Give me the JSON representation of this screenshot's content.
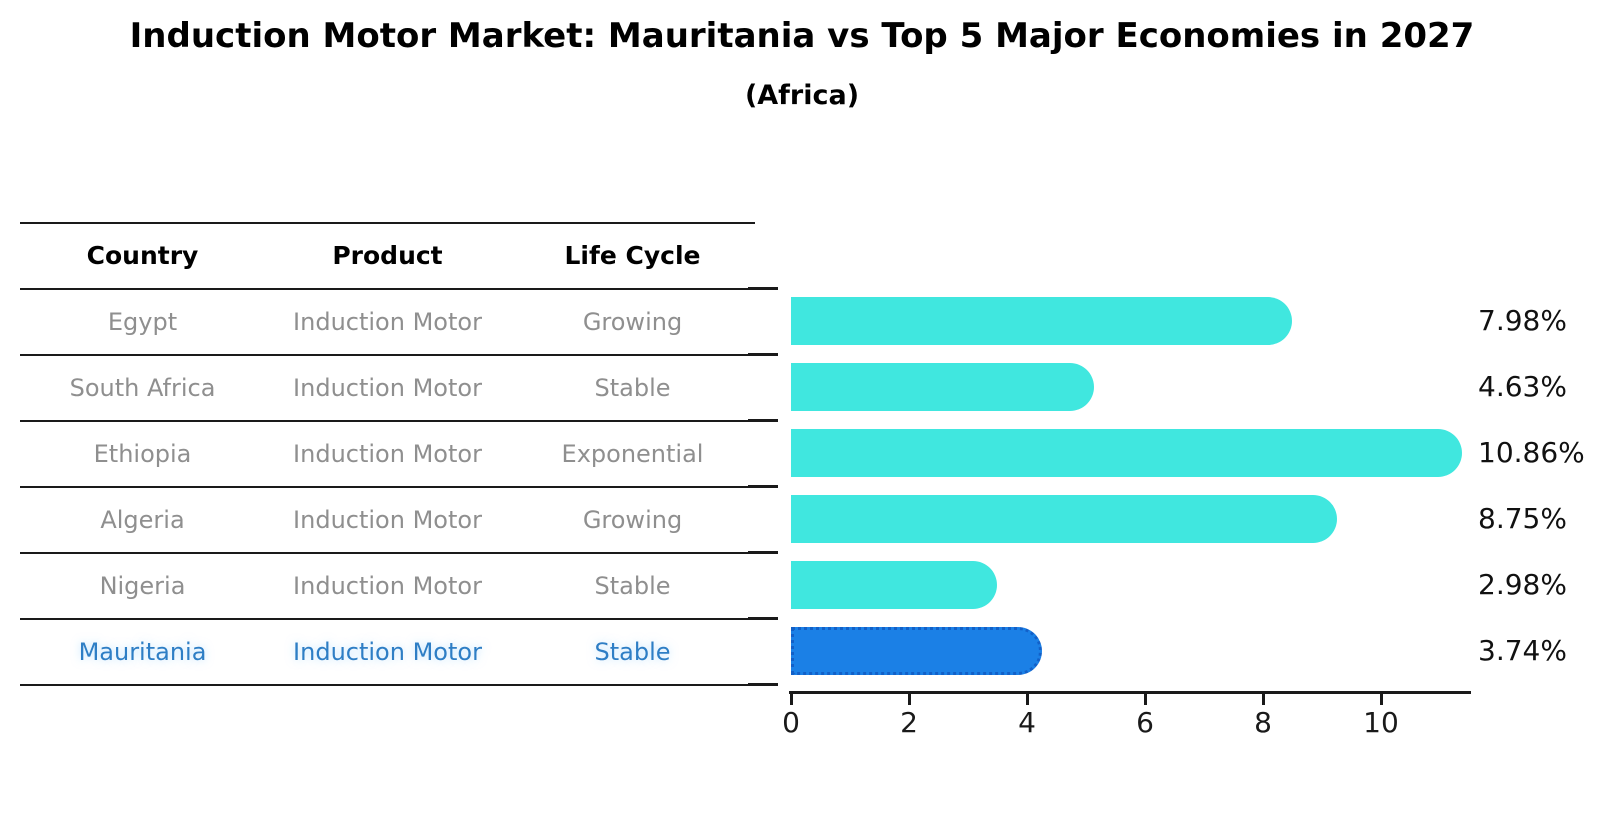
{
  "title": "Induction Motor Market: Mauritania vs Top 5 Major Economies in 2027",
  "subtitle": "(Africa)",
  "table": {
    "headers": [
      "Country",
      "Product",
      "Life Cycle"
    ],
    "rows": [
      {
        "country": "Egypt",
        "product": "Induction Motor",
        "life_cycle": "Growing",
        "highlight": false
      },
      {
        "country": "South Africa",
        "product": "Induction Motor",
        "life_cycle": "Stable",
        "highlight": false
      },
      {
        "country": "Ethiopia",
        "product": "Induction Motor",
        "life_cycle": "Exponential",
        "highlight": false
      },
      {
        "country": "Algeria",
        "product": "Induction Motor",
        "life_cycle": "Growing",
        "highlight": false
      },
      {
        "country": "Nigeria",
        "product": "Induction Motor",
        "life_cycle": "Stable",
        "highlight": false
      },
      {
        "country": "Mauritania",
        "product": "Induction Motor",
        "life_cycle": "Stable",
        "highlight": true
      }
    ]
  },
  "chart_data": {
    "type": "bar",
    "orientation": "horizontal",
    "title": "Induction Motor Market: Mauritania vs Top 5 Major Economies in 2027 (Africa)",
    "categories": [
      "Egypt",
      "South Africa",
      "Ethiopia",
      "Algeria",
      "Nigeria",
      "Mauritania"
    ],
    "values": [
      7.98,
      4.63,
      10.86,
      8.75,
      2.98,
      3.74
    ],
    "value_labels": [
      "7.98%",
      "4.63%",
      "10.86%",
      "8.75%",
      "2.98%",
      "3.74%"
    ],
    "x_ticks": [
      0,
      2,
      4,
      6,
      8,
      10
    ],
    "xlim": [
      0,
      11.45
    ],
    "grid": false,
    "legend": false,
    "bar_color": "#40e7df",
    "highlight_index": 5,
    "highlight_color": "#1b80e6",
    "highlight_border_color": "#1260c8",
    "highlight_text_color": "#2e7ec5"
  }
}
